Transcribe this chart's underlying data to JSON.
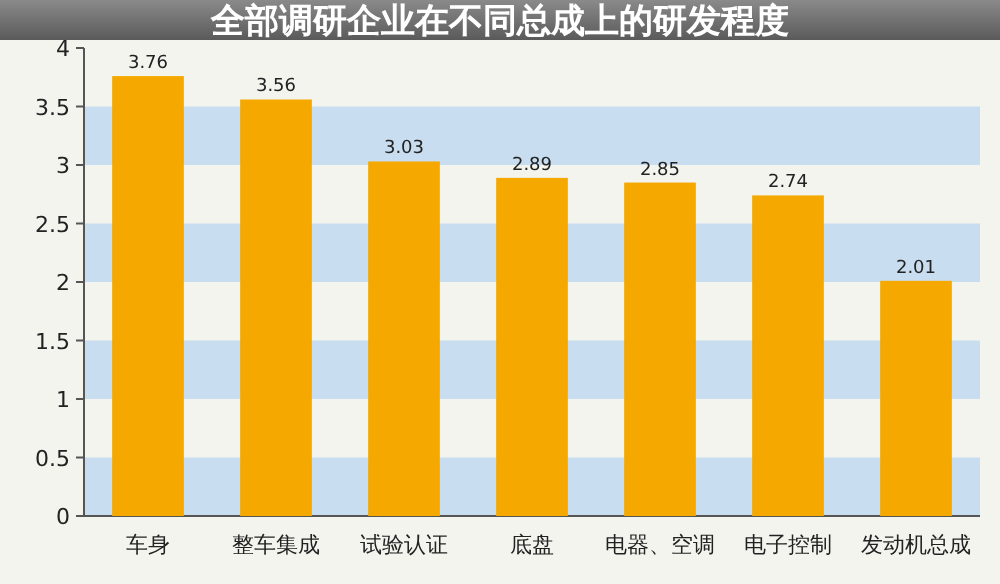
{
  "chart_data": {
    "type": "bar",
    "title": "全部调研企业在不同总成上的研发程度",
    "categories": [
      "车身",
      "整车集成",
      "试验认证",
      "底盘",
      "电器、空调",
      "电子控制",
      "发动机总成"
    ],
    "values": [
      3.76,
      3.56,
      3.03,
      2.89,
      2.85,
      2.74,
      2.01
    ],
    "color": "#f5a900",
    "ylim": [
      0,
      4
    ],
    "yticks": [
      0,
      0.5,
      1,
      1.5,
      2,
      2.5,
      3,
      3.5,
      4
    ],
    "bands": [
      {
        "axis": "y",
        "from": 0,
        "to": 0.5,
        "color": "#c8ddf0"
      },
      {
        "axis": "y",
        "from": 1,
        "to": 1.5,
        "color": "#c8ddf0"
      },
      {
        "axis": "y",
        "from": 2,
        "to": 2.5,
        "color": "#c8ddf0"
      },
      {
        "axis": "y",
        "from": 3,
        "to": 3.5,
        "color": "#c8ddf0"
      }
    ],
    "data_labels": true
  }
}
